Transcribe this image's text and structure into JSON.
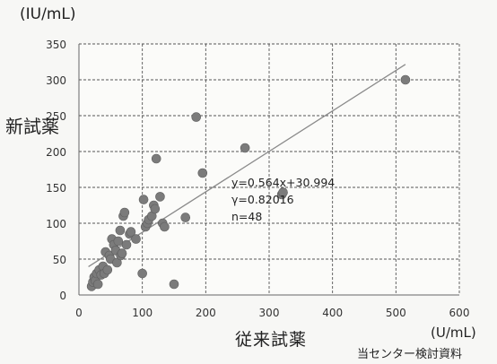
{
  "chart_data": {
    "type": "scatter",
    "title": "",
    "ylabel": "新試薬",
    "xlabel": "従来試薬",
    "y_unit": "(IU/mL)",
    "x_unit": "(U/mL)",
    "source_note": "当センター検討資料",
    "xlim": [
      0,
      600
    ],
    "ylim": [
      0,
      350
    ],
    "x_ticks": [
      "0",
      "100",
      "200",
      "300",
      "400",
      "500",
      "600"
    ],
    "y_ticks": [
      "0",
      "50",
      "100",
      "150",
      "200",
      "250",
      "300",
      "350"
    ],
    "grid": true,
    "annotations": [
      "y=0.564x+30.994",
      "γ=0.82016",
      "n=48"
    ],
    "trendline": {
      "slope": 0.564,
      "intercept": 30.994,
      "x_range": [
        15,
        515
      ]
    },
    "points": [
      [
        20,
        12
      ],
      [
        22,
        18
      ],
      [
        24,
        25
      ],
      [
        26,
        20
      ],
      [
        28,
        30
      ],
      [
        30,
        15
      ],
      [
        32,
        35
      ],
      [
        35,
        28
      ],
      [
        38,
        40
      ],
      [
        40,
        30
      ],
      [
        42,
        60
      ],
      [
        45,
        35
      ],
      [
        48,
        55
      ],
      [
        50,
        50
      ],
      [
        52,
        78
      ],
      [
        55,
        70
      ],
      [
        58,
        62
      ],
      [
        60,
        45
      ],
      [
        62,
        75
      ],
      [
        65,
        90
      ],
      [
        66,
        55
      ],
      [
        68,
        58
      ],
      [
        70,
        110
      ],
      [
        72,
        115
      ],
      [
        75,
        70
      ],
      [
        80,
        85
      ],
      [
        82,
        88
      ],
      [
        90,
        78
      ],
      [
        100,
        30
      ],
      [
        102,
        133
      ],
      [
        105,
        95
      ],
      [
        108,
        100
      ],
      [
        110,
        105
      ],
      [
        115,
        110
      ],
      [
        118,
        125
      ],
      [
        120,
        120
      ],
      [
        122,
        190
      ],
      [
        128,
        137
      ],
      [
        132,
        100
      ],
      [
        135,
        95
      ],
      [
        168,
        108
      ],
      [
        150,
        15
      ],
      [
        185,
        248
      ],
      [
        195,
        170
      ],
      [
        262,
        205
      ],
      [
        320,
        140
      ],
      [
        322,
        143
      ],
      [
        515,
        300
      ]
    ]
  }
}
